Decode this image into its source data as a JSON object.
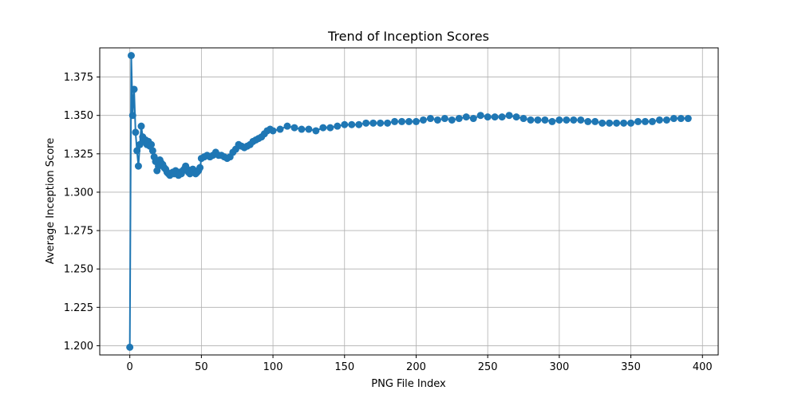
{
  "chart_data": {
    "type": "line",
    "title": "Trend of Inception Scores",
    "xlabel": "PNG File Index",
    "ylabel": "Average Inception Score",
    "xlim": [
      -21,
      411
    ],
    "ylim": [
      1.194,
      1.394
    ],
    "xticks": [
      0,
      50,
      100,
      150,
      200,
      250,
      300,
      350,
      400
    ],
    "xtick_labels": [
      "0",
      "50",
      "100",
      "150",
      "200",
      "250",
      "300",
      "350",
      "400"
    ],
    "yticks": [
      1.2,
      1.225,
      1.25,
      1.275,
      1.3,
      1.325,
      1.35,
      1.375
    ],
    "ytick_labels": [
      "1.200",
      "1.225",
      "1.250",
      "1.275",
      "1.300",
      "1.325",
      "1.350",
      "1.375"
    ],
    "grid": true,
    "legend": "none",
    "series_color": "#1f77b4",
    "marker": "circle",
    "series": [
      {
        "x": [
          0,
          1,
          2,
          3,
          4,
          5,
          6,
          7,
          8,
          9,
          10,
          11,
          12,
          13,
          14,
          15,
          16,
          17,
          18,
          19,
          20,
          21,
          22,
          23,
          24,
          25,
          26,
          27,
          28,
          29,
          30,
          31,
          32,
          33,
          34,
          35,
          36,
          37,
          38,
          39,
          40,
          41,
          42,
          43,
          44,
          45,
          46,
          47,
          48,
          49,
          50,
          52,
          54,
          56,
          58,
          60,
          62,
          64,
          66,
          68,
          70,
          72,
          74,
          76,
          78,
          80,
          82,
          84,
          86,
          88,
          90,
          92,
          94,
          96,
          98,
          100,
          105,
          110,
          115,
          120,
          125,
          130,
          135,
          140,
          145,
          150,
          155,
          160,
          165,
          170,
          175,
          180,
          185,
          190,
          195,
          200,
          205,
          210,
          215,
          220,
          225,
          230,
          235,
          240,
          245,
          250,
          255,
          260,
          265,
          270,
          275,
          280,
          285,
          290,
          295,
          300,
          305,
          310,
          315,
          320,
          325,
          330,
          335,
          340,
          345,
          350,
          355,
          360,
          365,
          370,
          375,
          380,
          385,
          390
        ],
        "y": [
          1.199,
          1.389,
          1.35,
          1.367,
          1.339,
          1.327,
          1.317,
          1.331,
          1.343,
          1.336,
          1.333,
          1.334,
          1.331,
          1.333,
          1.33,
          1.331,
          1.327,
          1.323,
          1.32,
          1.314,
          1.317,
          1.321,
          1.319,
          1.318,
          1.316,
          1.315,
          1.313,
          1.312,
          1.311,
          1.312,
          1.313,
          1.312,
          1.314,
          1.312,
          1.311,
          1.313,
          1.312,
          1.314,
          1.315,
          1.317,
          1.315,
          1.313,
          1.312,
          1.313,
          1.315,
          1.314,
          1.312,
          1.313,
          1.314,
          1.316,
          1.322,
          1.323,
          1.324,
          1.323,
          1.324,
          1.326,
          1.324,
          1.324,
          1.323,
          1.322,
          1.323,
          1.326,
          1.328,
          1.331,
          1.33,
          1.329,
          1.33,
          1.331,
          1.333,
          1.334,
          1.335,
          1.336,
          1.338,
          1.34,
          1.341,
          1.34,
          1.341,
          1.343,
          1.342,
          1.341,
          1.341,
          1.34,
          1.342,
          1.342,
          1.343,
          1.344,
          1.344,
          1.344,
          1.345,
          1.345,
          1.345,
          1.345,
          1.346,
          1.346,
          1.346,
          1.346,
          1.347,
          1.348,
          1.347,
          1.348,
          1.347,
          1.348,
          1.349,
          1.348,
          1.35,
          1.349,
          1.349,
          1.349,
          1.35,
          1.349,
          1.348,
          1.347,
          1.347,
          1.347,
          1.346,
          1.347,
          1.347,
          1.347,
          1.347,
          1.346,
          1.346,
          1.345,
          1.345,
          1.345,
          1.345,
          1.345,
          1.346,
          1.346,
          1.346,
          1.347,
          1.347,
          1.348,
          1.348,
          1.348
        ]
      }
    ]
  }
}
